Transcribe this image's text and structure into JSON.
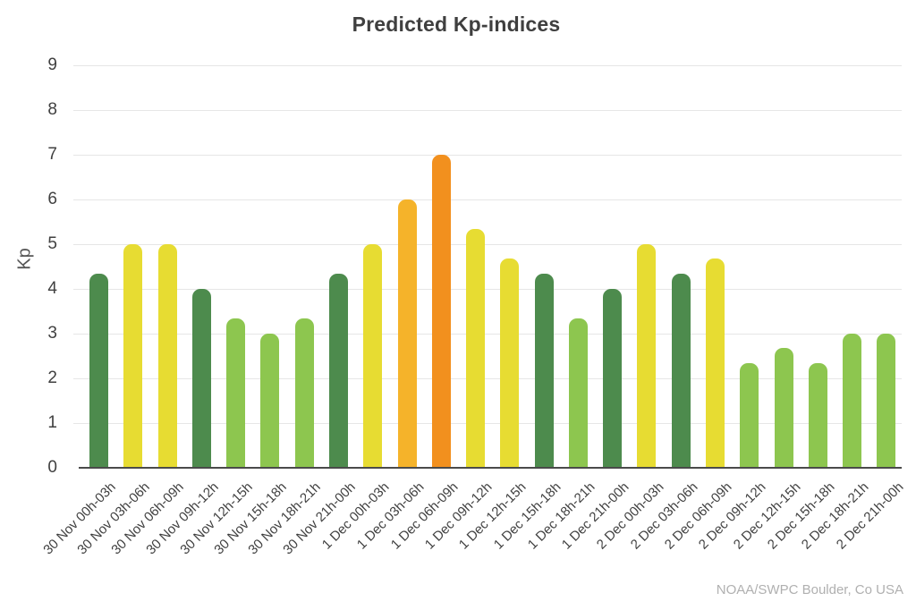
{
  "chart_data": {
    "type": "bar",
    "title": "Predicted Kp-indices",
    "xlabel": "",
    "ylabel": "Kp",
    "ylim": [
      0,
      9
    ],
    "yticks": [
      0,
      1,
      2,
      3,
      4,
      5,
      6,
      7,
      8,
      9
    ],
    "grid": "horizontal",
    "legend_position": "none",
    "categories": [
      "30 Nov 00h-03h",
      "30 Nov 03h-06h",
      "30 Nov 06h-09h",
      "30 Nov 09h-12h",
      "30 Nov 12h-15h",
      "30 Nov 15h-18h",
      "30 Nov 18h-21h",
      "30 Nov 21h-00h",
      "1 Dec 00h-03h",
      "1 Dec 03h-06h",
      "1 Dec 06h-09h",
      "1 Dec 09h-12h",
      "1 Dec 12h-15h",
      "1 Dec 15h-18h",
      "1 Dec 18h-21h",
      "1 Dec 21h-00h",
      "2 Dec 00h-03h",
      "2 Dec 03h-06h",
      "2 Dec 06h-09h",
      "2 Dec 09h-12h",
      "2 Dec 12h-15h",
      "2 Dec 15h-18h",
      "2 Dec 18h-21h",
      "2 Dec 21h-00h"
    ],
    "values": [
      4.33,
      5,
      5,
      4,
      3.33,
      3,
      3.33,
      4.33,
      5,
      6,
      7,
      5.33,
      4.67,
      4.33,
      3.33,
      4,
      5,
      4.33,
      4.67,
      2.33,
      2.67,
      2.33,
      3,
      3
    ],
    "bar_colors": [
      "#4d8b4d",
      "#e7dc32",
      "#e7dc32",
      "#4d8b4d",
      "#8dc64f",
      "#8dc64f",
      "#8dc64f",
      "#4d8b4d",
      "#e7dc32",
      "#f5b32a",
      "#f2901e",
      "#e7dc32",
      "#e7dc32",
      "#4d8b4d",
      "#8dc64f",
      "#4d8b4d",
      "#e7dc32",
      "#4d8b4d",
      "#e7dc32",
      "#8dc64f",
      "#8dc64f",
      "#8dc64f",
      "#8dc64f",
      "#8dc64f"
    ],
    "annotation": "NOAA/SWPC Boulder, Co USA"
  },
  "palette": {
    "dark_green": "#4d8b4d",
    "light_green": "#8dc64f",
    "yellow": "#e7dc32",
    "amber": "#f5b32a",
    "orange": "#f2901e",
    "gridline": "#e6e6e6",
    "axis_line": "#4a4a4a",
    "text": "#404040",
    "attribution_text": "#b0b0b0"
  }
}
